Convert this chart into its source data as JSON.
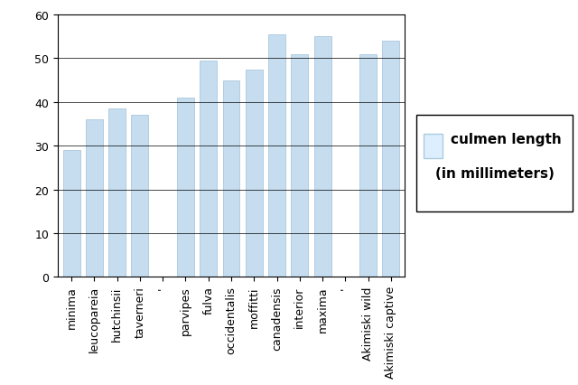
{
  "categories": [
    "minima",
    "leucopareia",
    "hutchinsii",
    "taverneri",
    "'",
    "parvipes",
    "fulva",
    "occidentalis",
    "moffitti",
    "canadensis",
    "interior",
    "maxima",
    "'",
    "Akimiski wild",
    "Akimiski captive"
  ],
  "values": [
    29,
    36,
    38.5,
    37,
    0,
    41,
    49.5,
    45,
    47.5,
    55.5,
    51,
    55,
    0,
    51,
    54
  ],
  "bar_color": "#c5ddef",
  "bar_edge_color": "#a0c0d8",
  "legend_label": "culmen length\n(in millimeters)",
  "legend_facecolor": "#ddeeff",
  "legend_edgecolor": "#000000",
  "ylim": [
    0,
    60
  ],
  "yticks": [
    0,
    10,
    20,
    30,
    40,
    50,
    60
  ],
  "grid_color": "#888888",
  "bg_color": "#ffffff",
  "tick_fontsize": 9,
  "legend_fontsize": 11,
  "figsize": [
    6.4,
    4.27
  ],
  "dpi": 100
}
